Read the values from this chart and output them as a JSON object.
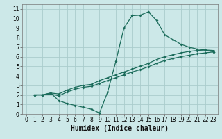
{
  "title": "",
  "xlabel": "Humidex (Indice chaleur)",
  "background_color": "#cce8e8",
  "grid_color": "#aacccc",
  "line_color": "#1a6b5a",
  "xlim": [
    -0.5,
    23.5
  ],
  "ylim": [
    0,
    11.5
  ],
  "xticks": [
    0,
    1,
    2,
    3,
    4,
    5,
    6,
    7,
    8,
    9,
    10,
    11,
    12,
    13,
    14,
    15,
    16,
    17,
    18,
    19,
    20,
    21,
    22,
    23
  ],
  "yticks": [
    0,
    1,
    2,
    3,
    4,
    5,
    6,
    7,
    8,
    9,
    10,
    11
  ],
  "curve1_x": [
    1,
    2,
    3,
    4,
    5,
    6,
    7,
    8,
    9,
    10,
    11,
    12,
    13,
    14,
    15,
    16,
    17,
    18,
    19,
    20,
    21,
    22,
    23
  ],
  "curve1_y": [
    2.0,
    2.0,
    2.2,
    2.1,
    2.5,
    2.8,
    3.0,
    3.1,
    3.5,
    3.8,
    4.1,
    4.4,
    4.7,
    5.0,
    5.3,
    5.7,
    6.0,
    6.2,
    6.4,
    6.55,
    6.65,
    6.7,
    6.65
  ],
  "curve2_x": [
    1,
    2,
    3,
    4,
    5,
    6,
    7,
    8,
    9,
    10,
    11,
    12,
    13,
    14,
    15,
    16,
    17,
    18,
    19,
    20,
    21,
    22,
    23
  ],
  "curve2_y": [
    2.0,
    2.0,
    2.1,
    1.9,
    2.3,
    2.6,
    2.8,
    2.9,
    3.2,
    3.5,
    3.8,
    4.1,
    4.4,
    4.65,
    4.95,
    5.3,
    5.6,
    5.8,
    6.0,
    6.15,
    6.3,
    6.4,
    6.5
  ],
  "curve3_x": [
    1,
    2,
    3,
    4,
    5,
    6,
    7,
    8,
    9,
    10,
    11,
    12,
    13,
    14,
    15,
    16,
    17,
    18,
    19,
    20,
    21,
    22,
    23
  ],
  "curve3_y": [
    2.0,
    2.0,
    2.2,
    1.4,
    1.1,
    0.9,
    0.7,
    0.5,
    0.1,
    2.3,
    5.5,
    9.0,
    10.3,
    10.35,
    10.7,
    9.8,
    8.3,
    7.8,
    7.3,
    7.0,
    6.8,
    6.7,
    6.5
  ],
  "fontsize": 6,
  "tick_fontsize": 5.5,
  "xlabel_fontsize": 7
}
